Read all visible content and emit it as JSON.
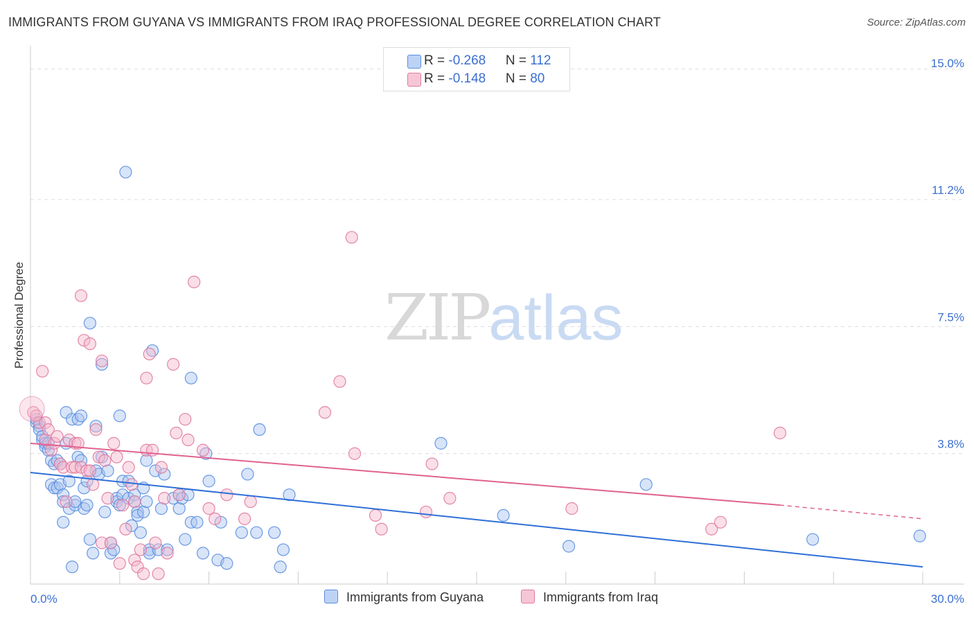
{
  "header": {
    "title": "IMMIGRANTS FROM GUYANA VS IMMIGRANTS FROM IRAQ PROFESSIONAL DEGREE CORRELATION CHART",
    "source": "Source: ZipAtlas.com"
  },
  "watermark": {
    "zip": "ZIP",
    "atlas": "atlas"
  },
  "legend": {
    "rows": [
      {
        "r_label": "R = ",
        "r_value": "-0.268",
        "n_label": "N = ",
        "n_value": "112"
      },
      {
        "r_label": "R = ",
        "r_value": "-0.148",
        "n_label": "N = ",
        "n_value": "80"
      }
    ]
  },
  "chart_data": {
    "type": "scatter",
    "title": "IMMIGRANTS FROM GUYANA VS IMMIGRANTS FROM IRAQ PROFESSIONAL DEGREE CORRELATION CHART",
    "xlabel": "",
    "ylabel": "Professional Degree",
    "xlim": [
      0,
      30
    ],
    "ylim": [
      0,
      15.5
    ],
    "x_tick_labels": [
      "0.0%",
      "30.0%"
    ],
    "y_ticks": [
      {
        "value": 3.8,
        "label": "3.8%"
      },
      {
        "value": 7.5,
        "label": "7.5%"
      },
      {
        "value": 11.2,
        "label": "11.2%"
      },
      {
        "value": 15.0,
        "label": "15.0%"
      }
    ],
    "series": [
      {
        "name": "Immigrants from Guyana",
        "color": "#5b8fe0",
        "fill": "#a9c4f0",
        "trend": {
          "x": [
            0,
            30
          ],
          "y": [
            3.25,
            0.5
          ]
        },
        "points": [
          [
            0.2,
            4.7
          ],
          [
            0.2,
            4.8
          ],
          [
            0.3,
            4.6
          ],
          [
            0.3,
            4.5
          ],
          [
            0.4,
            4.2
          ],
          [
            0.4,
            4.3
          ],
          [
            0.5,
            4.0
          ],
          [
            0.5,
            4.1
          ],
          [
            0.6,
            3.9
          ],
          [
            0.6,
            4.1
          ],
          [
            0.7,
            3.6
          ],
          [
            0.7,
            2.9
          ],
          [
            0.8,
            2.8
          ],
          [
            0.8,
            3.5
          ],
          [
            0.9,
            3.6
          ],
          [
            0.9,
            2.8
          ],
          [
            1.0,
            3.5
          ],
          [
            1.0,
            2.9
          ],
          [
            1.1,
            2.6
          ],
          [
            1.1,
            2.4
          ],
          [
            1.1,
            1.8
          ],
          [
            1.2,
            5.0
          ],
          [
            1.2,
            4.1
          ],
          [
            1.3,
            3.0
          ],
          [
            1.3,
            2.2
          ],
          [
            1.4,
            4.8
          ],
          [
            1.4,
            0.5
          ],
          [
            1.5,
            2.3
          ],
          [
            1.5,
            2.4
          ],
          [
            1.6,
            3.7
          ],
          [
            1.6,
            4.8
          ],
          [
            1.7,
            3.6
          ],
          [
            1.7,
            4.9
          ],
          [
            1.8,
            2.8
          ],
          [
            1.8,
            2.2
          ],
          [
            1.9,
            3.0
          ],
          [
            1.9,
            2.3
          ],
          [
            2.0,
            7.6
          ],
          [
            2.0,
            1.3
          ],
          [
            2.1,
            0.9
          ],
          [
            2.2,
            3.3
          ],
          [
            2.2,
            4.6
          ],
          [
            2.3,
            3.2
          ],
          [
            2.4,
            3.7
          ],
          [
            2.4,
            6.4
          ],
          [
            2.5,
            2.1
          ],
          [
            2.6,
            3.3
          ],
          [
            2.7,
            0.9
          ],
          [
            2.7,
            1.2
          ],
          [
            2.8,
            1.0
          ],
          [
            2.9,
            2.5
          ],
          [
            2.9,
            2.4
          ],
          [
            3.0,
            4.9
          ],
          [
            3.0,
            2.3
          ],
          [
            3.1,
            3.0
          ],
          [
            3.1,
            2.6
          ],
          [
            3.2,
            12.0
          ],
          [
            3.3,
            2.5
          ],
          [
            3.3,
            3.0
          ],
          [
            3.4,
            1.7
          ],
          [
            3.5,
            2.6
          ],
          [
            3.5,
            2.4
          ],
          [
            3.6,
            2.1
          ],
          [
            3.6,
            2.0
          ],
          [
            3.7,
            1.5
          ],
          [
            3.8,
            2.1
          ],
          [
            3.8,
            2.8
          ],
          [
            3.9,
            3.6
          ],
          [
            3.9,
            2.4
          ],
          [
            4.0,
            1.0
          ],
          [
            4.0,
            0.9
          ],
          [
            4.1,
            6.8
          ],
          [
            4.2,
            3.3
          ],
          [
            4.3,
            1.0
          ],
          [
            4.4,
            2.2
          ],
          [
            4.5,
            3.2
          ],
          [
            4.6,
            1.0
          ],
          [
            4.8,
            2.5
          ],
          [
            5.0,
            2.6
          ],
          [
            5.0,
            2.2
          ],
          [
            5.1,
            2.5
          ],
          [
            5.2,
            1.3
          ],
          [
            5.3,
            2.6
          ],
          [
            5.4,
            6.0
          ],
          [
            5.4,
            1.8
          ],
          [
            5.6,
            1.8
          ],
          [
            5.8,
            0.9
          ],
          [
            5.9,
            3.8
          ],
          [
            6.0,
            3.0
          ],
          [
            6.3,
            0.7
          ],
          [
            6.4,
            1.8
          ],
          [
            6.6,
            0.6
          ],
          [
            7.1,
            1.5
          ],
          [
            7.3,
            3.2
          ],
          [
            7.6,
            1.5
          ],
          [
            7.7,
            4.5
          ],
          [
            8.2,
            1.5
          ],
          [
            8.4,
            0.5
          ],
          [
            8.5,
            1.0
          ],
          [
            8.7,
            2.6
          ],
          [
            13.8,
            4.1
          ],
          [
            15.9,
            2.0
          ],
          [
            18.1,
            1.1
          ],
          [
            20.7,
            2.9
          ],
          [
            26.3,
            1.3
          ],
          [
            29.9,
            1.4
          ]
        ]
      },
      {
        "name": "Immigrants from Iraq",
        "color": "#e07aa0",
        "fill": "#f5b7cb",
        "trend": {
          "x": [
            0,
            25.2
          ],
          "y": [
            4.1,
            2.3
          ]
        },
        "trend_dashed": {
          "x": [
            25.2,
            30
          ],
          "y": [
            2.3,
            1.9
          ]
        },
        "points": [
          [
            0.1,
            5.0
          ],
          [
            0.2,
            4.9
          ],
          [
            0.3,
            4.7
          ],
          [
            0.4,
            6.2
          ],
          [
            0.5,
            4.7
          ],
          [
            0.5,
            4.2
          ],
          [
            0.6,
            4.5
          ],
          [
            0.7,
            3.9
          ],
          [
            0.8,
            4.1
          ],
          [
            0.9,
            4.3
          ],
          [
            1.0,
            3.5
          ],
          [
            1.1,
            3.4
          ],
          [
            1.2,
            2.4
          ],
          [
            1.3,
            4.2
          ],
          [
            1.4,
            3.4
          ],
          [
            1.5,
            3.4
          ],
          [
            1.5,
            4.1
          ],
          [
            1.6,
            4.1
          ],
          [
            1.7,
            3.4
          ],
          [
            1.7,
            8.4
          ],
          [
            1.8,
            7.1
          ],
          [
            1.9,
            3.3
          ],
          [
            2.0,
            7.0
          ],
          [
            2.0,
            3.3
          ],
          [
            2.1,
            2.9
          ],
          [
            2.2,
            4.5
          ],
          [
            2.3,
            3.7
          ],
          [
            2.4,
            6.5
          ],
          [
            2.4,
            1.2
          ],
          [
            2.5,
            3.6
          ],
          [
            2.6,
            2.5
          ],
          [
            2.7,
            1.2
          ],
          [
            2.8,
            4.1
          ],
          [
            2.9,
            3.7
          ],
          [
            3.0,
            0.6
          ],
          [
            3.1,
            2.3
          ],
          [
            3.2,
            1.6
          ],
          [
            3.3,
            3.4
          ],
          [
            3.4,
            2.9
          ],
          [
            3.5,
            0.7
          ],
          [
            3.5,
            2.4
          ],
          [
            3.6,
            0.5
          ],
          [
            3.7,
            1.0
          ],
          [
            3.8,
            0.3
          ],
          [
            3.9,
            6.0
          ],
          [
            3.9,
            3.9
          ],
          [
            4.0,
            6.7
          ],
          [
            4.1,
            3.9
          ],
          [
            4.2,
            1.2
          ],
          [
            4.3,
            0.3
          ],
          [
            4.4,
            3.4
          ],
          [
            4.5,
            2.5
          ],
          [
            4.6,
            0.9
          ],
          [
            4.8,
            6.4
          ],
          [
            4.9,
            4.4
          ],
          [
            5.0,
            2.6
          ],
          [
            5.2,
            4.8
          ],
          [
            5.3,
            4.2
          ],
          [
            5.5,
            8.8
          ],
          [
            5.8,
            3.9
          ],
          [
            6.0,
            2.2
          ],
          [
            6.2,
            1.9
          ],
          [
            6.6,
            2.6
          ],
          [
            7.2,
            1.9
          ],
          [
            7.4,
            2.4
          ],
          [
            9.9,
            5.0
          ],
          [
            10.4,
            5.9
          ],
          [
            10.8,
            10.1
          ],
          [
            10.9,
            3.8
          ],
          [
            11.6,
            2.0
          ],
          [
            11.8,
            1.6
          ],
          [
            13.3,
            2.1
          ],
          [
            13.5,
            3.5
          ],
          [
            14.1,
            2.5
          ],
          [
            18.2,
            2.2
          ],
          [
            22.9,
            1.6
          ],
          [
            23.2,
            1.8
          ],
          [
            25.2,
            4.4
          ]
        ]
      }
    ]
  }
}
